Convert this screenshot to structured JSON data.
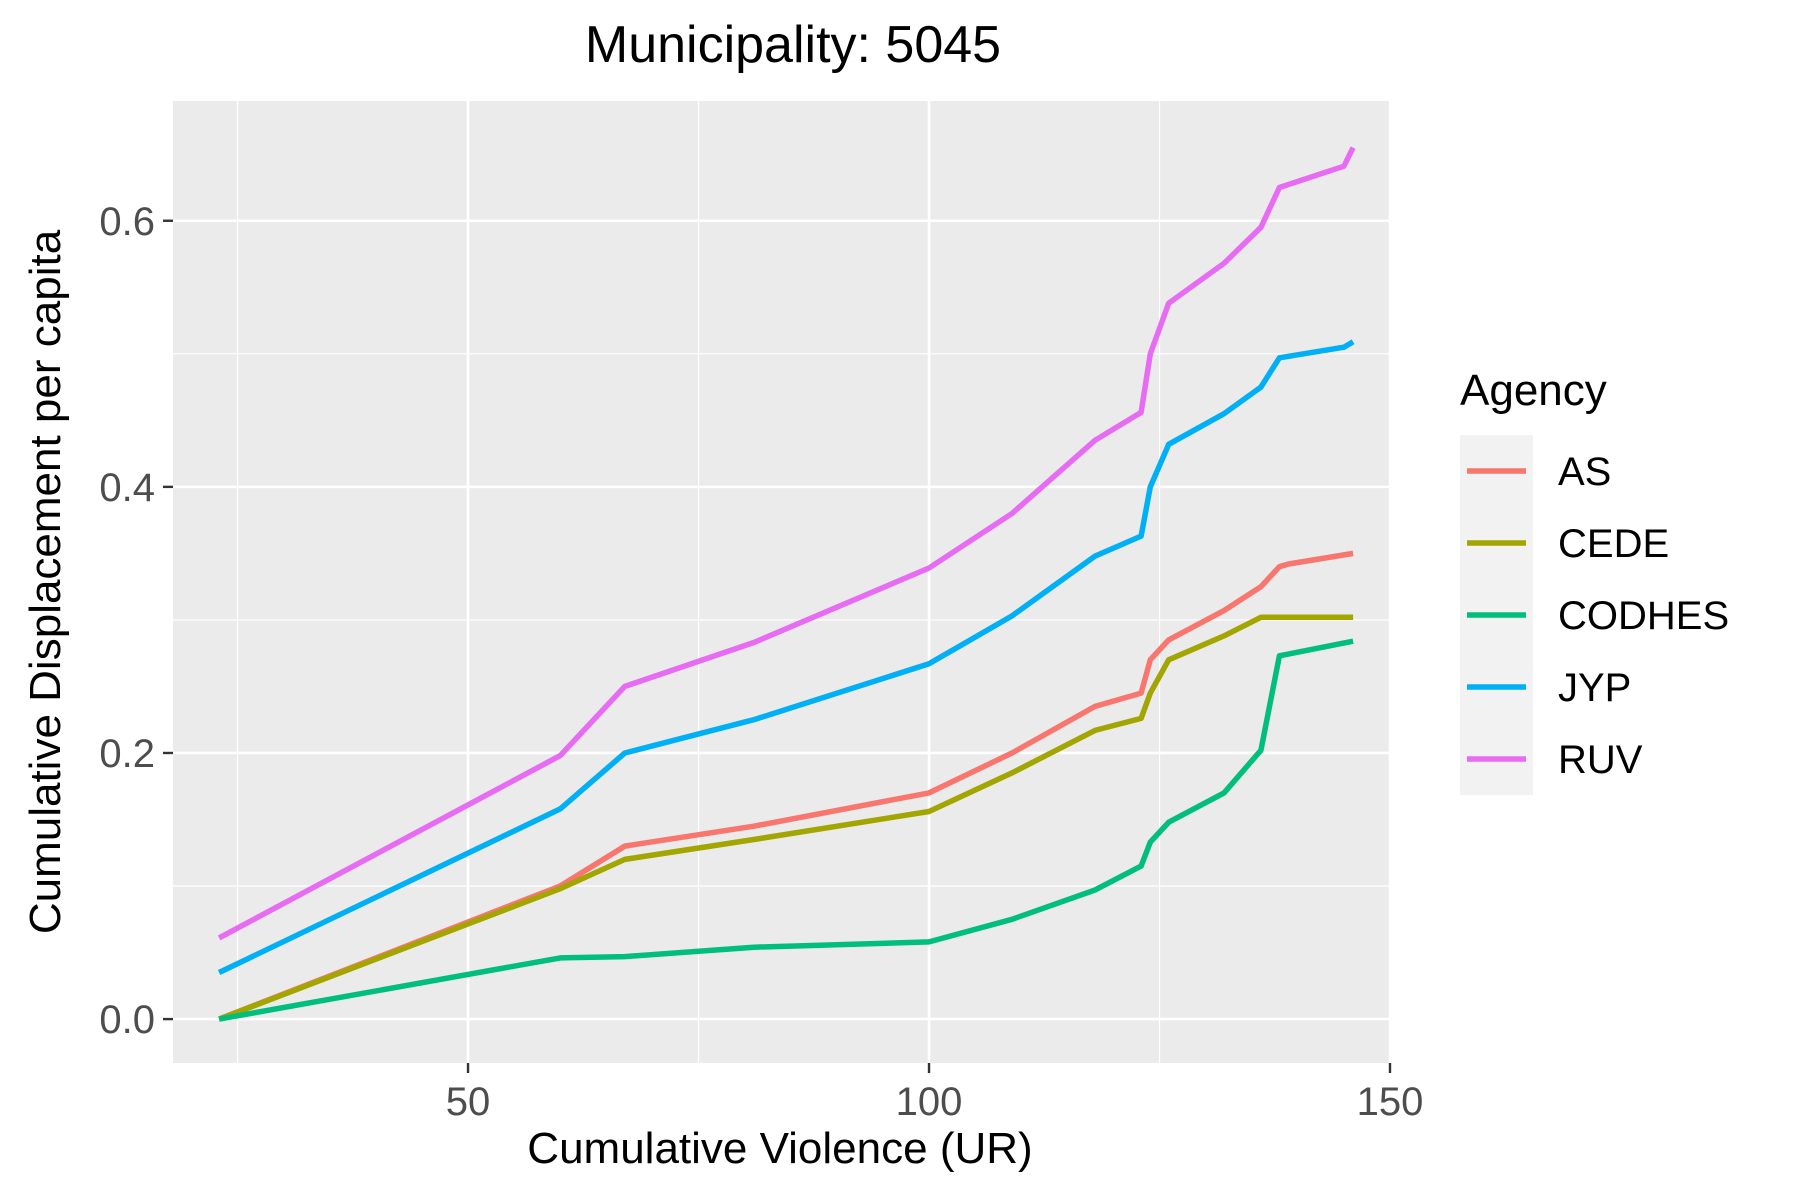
{
  "chart_data": {
    "type": "line",
    "title": "Municipality: 5045",
    "xlabel": "Cumulative Violence (UR)",
    "ylabel": "Cumulative Displacement per capita",
    "xlim": [
      18,
      150
    ],
    "ylim": [
      -0.033,
      0.69
    ],
    "x_ticks": [
      50,
      100,
      150
    ],
    "y_ticks": [
      0.0,
      0.2,
      0.4,
      0.6
    ],
    "x_tick_labels": [
      "50",
      "100",
      "150"
    ],
    "y_tick_labels": [
      "0.0",
      "0.2",
      "0.4",
      "0.6"
    ],
    "grid": true,
    "legend": {
      "title": "Agency",
      "placement": "right"
    },
    "series": [
      {
        "name": "AS",
        "color": "#F8766D",
        "points": [
          [
            23,
            0
          ],
          [
            60,
            0.1
          ],
          [
            67,
            0.13
          ],
          [
            81,
            0.145
          ],
          [
            100,
            0.17
          ],
          [
            109,
            0.2
          ],
          [
            118,
            0.235
          ],
          [
            123,
            0.245
          ],
          [
            124,
            0.27
          ],
          [
            126,
            0.285
          ],
          [
            132,
            0.307
          ],
          [
            136,
            0.325
          ],
          [
            138,
            0.34
          ],
          [
            139,
            0.342
          ],
          [
            146,
            0.35
          ]
        ]
      },
      {
        "name": "CEDE",
        "color": "#A3A500",
        "points": [
          [
            23,
            0
          ],
          [
            60,
            0.098
          ],
          [
            67,
            0.12
          ],
          [
            81,
            0.135
          ],
          [
            100,
            0.156
          ],
          [
            109,
            0.185
          ],
          [
            118,
            0.217
          ],
          [
            123,
            0.226
          ],
          [
            124,
            0.245
          ],
          [
            126,
            0.27
          ],
          [
            132,
            0.288
          ],
          [
            136,
            0.302
          ],
          [
            146,
            0.302
          ]
        ]
      },
      {
        "name": "CODHES",
        "color": "#00BF7D",
        "points": [
          [
            23,
            0
          ],
          [
            60,
            0.046
          ],
          [
            67,
            0.047
          ],
          [
            81,
            0.054
          ],
          [
            100,
            0.058
          ],
          [
            109,
            0.075
          ],
          [
            118,
            0.097
          ],
          [
            123,
            0.115
          ],
          [
            124,
            0.133
          ],
          [
            126,
            0.148
          ],
          [
            132,
            0.17
          ],
          [
            136,
            0.202
          ],
          [
            138,
            0.273
          ],
          [
            146,
            0.284
          ]
        ]
      },
      {
        "name": "JYP",
        "color": "#00B0F6",
        "points": [
          [
            23,
            0.035
          ],
          [
            60,
            0.158
          ],
          [
            67,
            0.2
          ],
          [
            81,
            0.225
          ],
          [
            100,
            0.267
          ],
          [
            109,
            0.303
          ],
          [
            118,
            0.348
          ],
          [
            123,
            0.363
          ],
          [
            124,
            0.4
          ],
          [
            126,
            0.432
          ],
          [
            132,
            0.455
          ],
          [
            136,
            0.475
          ],
          [
            138,
            0.497
          ],
          [
            145,
            0.505
          ],
          [
            146,
            0.509
          ]
        ]
      },
      {
        "name": "RUV",
        "color": "#E76BF3",
        "points": [
          [
            23,
            0.061
          ],
          [
            60,
            0.198
          ],
          [
            67,
            0.25
          ],
          [
            81,
            0.283
          ],
          [
            100,
            0.339
          ],
          [
            109,
            0.38
          ],
          [
            118,
            0.435
          ],
          [
            123,
            0.456
          ],
          [
            124,
            0.5
          ],
          [
            126,
            0.538
          ],
          [
            132,
            0.568
          ],
          [
            136,
            0.595
          ],
          [
            138,
            0.625
          ],
          [
            145,
            0.641
          ],
          [
            146,
            0.655
          ]
        ]
      }
    ]
  }
}
